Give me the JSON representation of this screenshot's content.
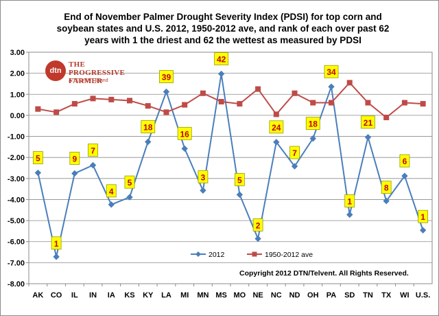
{
  "chart_data": {
    "type": "line",
    "title_lines": [
      "End of November Palmer Drought Severity Index (PDSI) for top corn and",
      "soybean states and U.S.  2012, 1950-2012 ave, and rank of each over past 62",
      "years with 1 the driest and 62 the wettest as measured by PDSI"
    ],
    "categories": [
      "AK",
      "CO",
      "IL",
      "IN",
      "IA",
      "KS",
      "KY",
      "LA",
      "MI",
      "MN",
      "MS",
      "MO",
      "NE",
      "NC",
      "ND",
      "OH",
      "PA",
      "SD",
      "TN",
      "TX",
      "WI",
      "U.S."
    ],
    "ylim": [
      -8,
      3
    ],
    "yticks": [
      "3.00",
      "2.00",
      "1.00",
      "0.00",
      "-1.00",
      "-2.00",
      "-3.00",
      "-4.00",
      "-5.00",
      "-6.00",
      "-7.00",
      "-8.00"
    ],
    "grid": true,
    "legend_position": "bottom-center",
    "series": [
      {
        "name": "2012",
        "color": "#4a7ebb",
        "marker": "diamond",
        "values": [
          -2.73,
          -6.72,
          -2.76,
          -2.37,
          -4.24,
          -3.89,
          -1.26,
          1.12,
          -1.58,
          -3.57,
          1.97,
          -3.77,
          -5.86,
          -1.27,
          -2.42,
          -1.1,
          1.36,
          -4.72,
          -1.04,
          -4.07,
          -2.88,
          -5.46
        ]
      },
      {
        "name": "1950-2012 ave",
        "color": "#be4b48",
        "marker": "square",
        "values": [
          0.3,
          0.15,
          0.55,
          0.8,
          0.75,
          0.7,
          0.45,
          0.15,
          0.5,
          1.05,
          0.65,
          0.55,
          1.25,
          0.05,
          1.05,
          0.6,
          0.6,
          1.55,
          0.6,
          -0.1,
          0.6,
          0.55
        ]
      }
    ],
    "ranks": [
      "5",
      "1",
      "9",
      "7",
      "4",
      "5",
      "18",
      "39",
      "16",
      "3",
      "42",
      "5",
      "2",
      "24",
      "7",
      "18",
      "34",
      "1",
      "21",
      "8",
      "6",
      "1"
    ],
    "rank_box_color": "#ffff00",
    "rank_text_color": "#c00000"
  },
  "logo": {
    "badge_text": "dtn",
    "brand_line1": "THE PROGRESSIVE",
    "brand_line2": "FARMER",
    "sub_text": "A TELVENT Brand",
    "color": "#b23a2b"
  },
  "copyright": "Copyright 2012 DTN/Telvent. All Rights Reserved."
}
